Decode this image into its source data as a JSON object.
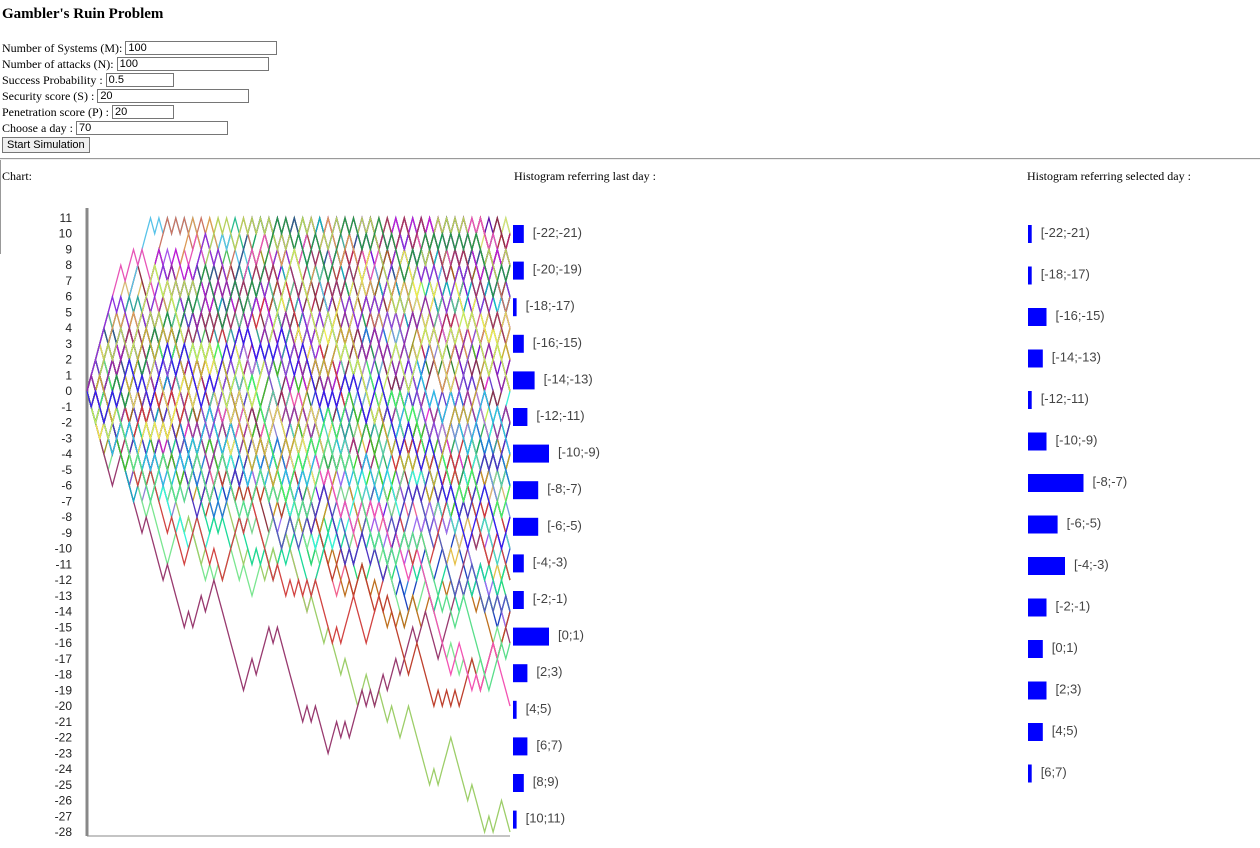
{
  "title": "Gambler's Ruin Problem",
  "form": {
    "systems": {
      "label": "Number of Systems (M):",
      "value": "100"
    },
    "attacks": {
      "label": "Number of attacks (N):",
      "value": "100"
    },
    "probability": {
      "label": "Success Probability :",
      "value": "0.5"
    },
    "security": {
      "label": "Security score (S) :",
      "value": "20"
    },
    "penetration": {
      "label": "Penetration score (P) :",
      "value": "20"
    },
    "day": {
      "label": "Choose a day :",
      "value": "70"
    },
    "start_label": "Start Simulation"
  },
  "labels": {
    "chart": "Chart:",
    "hist_last": "Histogram referring last day :",
    "hist_selected": "Histogram referring selected day :"
  },
  "chart_data": [
    {
      "type": "line",
      "title": "",
      "y_ticks": [
        11,
        10,
        9,
        8,
        7,
        6,
        5,
        4,
        3,
        2,
        1,
        0,
        -1,
        -2,
        -3,
        -4,
        -5,
        -6,
        -7,
        -8,
        -9,
        -10,
        -11,
        -12,
        -13,
        -14,
        -15,
        -16,
        -17,
        -18,
        -19,
        -20,
        -21,
        -22,
        -23,
        -24,
        -25,
        -26,
        -27,
        -28
      ],
      "ylim": [
        -28,
        11
      ],
      "steps": 100,
      "series_count": 100
    },
    {
      "type": "bar",
      "title": "Histogram referring last day :",
      "categories": [
        "[-22;-21)",
        "[-20;-19)",
        "[-18;-17)",
        "[-16;-15)",
        "[-14;-13)",
        "[-12;-11)",
        "[-10;-9)",
        "[-8;-7)",
        "[-6;-5)",
        "[-4;-3)",
        "[-2;-1)",
        "[0;1)",
        "[2;3)",
        "[4;5)",
        "[6;7)",
        "[8;9)",
        "[10;11)"
      ],
      "values": [
        3,
        3,
        1,
        3,
        6,
        4,
        10,
        7,
        7,
        3,
        3,
        10,
        4,
        1,
        4,
        3,
        1
      ],
      "color": "#0000ff"
    },
    {
      "type": "bar",
      "title": "Histogram referring selected day :",
      "categories": [
        "[-22;-21)",
        "[-18;-17)",
        "[-16;-15)",
        "[-14;-13)",
        "[-12;-11)",
        "[-10;-9)",
        "[-8;-7)",
        "[-6;-5)",
        "[-4;-3)",
        "[-2;-1)",
        "[0;1)",
        "[2;3)",
        "[4;5)",
        "[6;7)"
      ],
      "values": [
        1,
        1,
        5,
        4,
        1,
        5,
        15,
        8,
        10,
        5,
        4,
        5,
        4,
        1
      ],
      "color": "#0000ff"
    }
  ]
}
